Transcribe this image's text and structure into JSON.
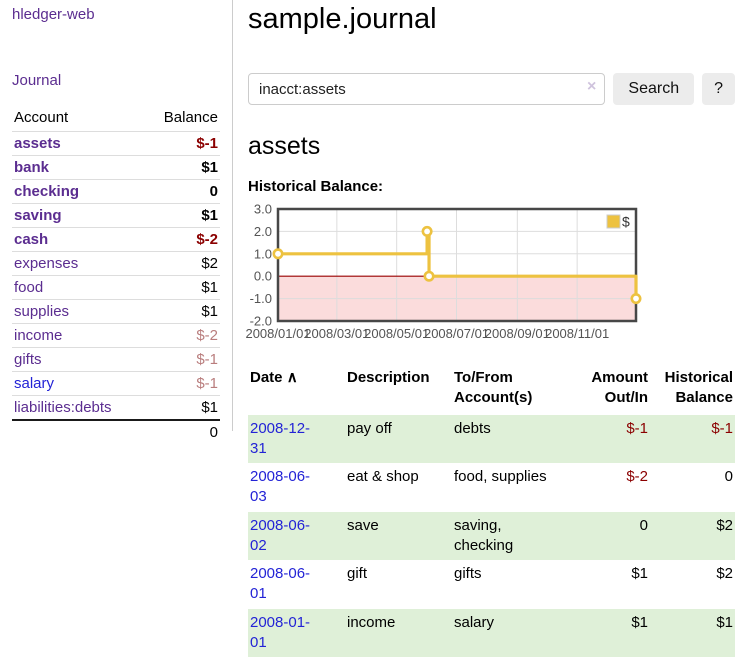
{
  "app": {
    "title": "hledger-web"
  },
  "colors": {
    "accent_purple": "#5b2d90",
    "link_blue": "#2323d6",
    "negative_strong": "#8b0000",
    "negative_muted": "#b97d7d",
    "row_shade_green": "#dff0d8",
    "chart_line": "#edc240",
    "negative_region": "#fbdcdc",
    "zero_line": "#990000"
  },
  "sidebar": {
    "journal_link": "Journal",
    "table": {
      "account_header": "Account",
      "balance_header": "Balance",
      "rows": [
        {
          "name": "assets",
          "depth": 1,
          "bold": true,
          "blue": false,
          "balance": "$-1",
          "bstyle": "negstrong"
        },
        {
          "name": "bank",
          "depth": 2,
          "bold": true,
          "blue": false,
          "balance": "$1",
          "bstyle": "b"
        },
        {
          "name": "checking",
          "depth": 3,
          "bold": true,
          "blue": false,
          "balance": "0",
          "bstyle": "b"
        },
        {
          "name": "saving",
          "depth": 3,
          "bold": true,
          "blue": false,
          "balance": "$1",
          "bstyle": "b"
        },
        {
          "name": "cash",
          "depth": 2,
          "bold": true,
          "blue": false,
          "balance": "$-2",
          "bstyle": "negstrong"
        },
        {
          "name": "expenses",
          "depth": 1,
          "bold": false,
          "blue": false,
          "balance": "$2",
          "bstyle": ""
        },
        {
          "name": "food",
          "depth": 2,
          "bold": false,
          "blue": false,
          "balance": "$1",
          "bstyle": ""
        },
        {
          "name": "supplies",
          "depth": 2,
          "bold": false,
          "blue": false,
          "balance": "$1",
          "bstyle": ""
        },
        {
          "name": "income",
          "depth": 1,
          "bold": false,
          "blue": false,
          "balance": "$-2",
          "bstyle": "negmuted"
        },
        {
          "name": "gifts",
          "depth": 2,
          "bold": false,
          "blue": false,
          "balance": "$-1",
          "bstyle": "negmuted"
        },
        {
          "name": "salary",
          "depth": 2,
          "bold": false,
          "blue": true,
          "balance": "$-1",
          "bstyle": "negmuted"
        },
        {
          "name": "liabilities:debts",
          "depth": 1,
          "bold": false,
          "blue": false,
          "balance": "$1",
          "bstyle": ""
        }
      ],
      "total": "0"
    }
  },
  "header": {
    "title": "sample.journal"
  },
  "search": {
    "value": "inacct:assets",
    "clear_icon": "×",
    "button": "Search",
    "help_button": "?"
  },
  "account_page": {
    "heading": "assets",
    "chart_label": "Historical Balance:"
  },
  "chart_data": {
    "type": "line",
    "steps": true,
    "title": "Historical Balance:",
    "series": [
      {
        "name": "$",
        "color": "#edc240",
        "points": [
          [
            "2008-01-01",
            1
          ],
          [
            "2008-06-01",
            2
          ],
          [
            "2008-06-03",
            0
          ],
          [
            "2008-12-31",
            -1
          ]
        ]
      }
    ],
    "x_range": [
      "2008-01-01",
      "2008-12-31"
    ],
    "ylim": [
      -2,
      3
    ],
    "y_ticks": [
      "-2.0",
      "-1.0",
      "0.0",
      "1.0",
      "2.0",
      "3.0"
    ],
    "x_ticks": [
      "2008/01/01",
      "2008/03/01",
      "2008/05/01",
      "2008/07/01",
      "2008/09/01",
      "2008/11/01"
    ],
    "grid": true,
    "legend_position": "top-right",
    "legend_label": "$",
    "negative_region_shaded": true
  },
  "register": {
    "columns": [
      {
        "label": "Date",
        "sort": "∧"
      },
      {
        "label": "Description"
      },
      {
        "label": "To/From",
        "label2": "Account(s)"
      },
      {
        "label": "Amount",
        "label2": "Out/In"
      },
      {
        "label": "Historical",
        "label2": "Balance"
      }
    ],
    "rows": [
      {
        "date": "2008-12-31",
        "description": "pay off",
        "accounts": "debts",
        "amount": "$-1",
        "balance": "$-1",
        "shaded": true
      },
      {
        "date": "2008-06-03",
        "description": "eat & shop",
        "accounts": "food, supplies",
        "amount": "$-2",
        "balance": "0",
        "shaded": false
      },
      {
        "date": "2008-06-02",
        "description": "save",
        "accounts": "saving, checking",
        "amount": "0",
        "balance": "$2",
        "shaded": true
      },
      {
        "date": "2008-06-01",
        "description": "gift",
        "accounts": "gifts",
        "amount": "$1",
        "balance": "$2",
        "shaded": false
      },
      {
        "date": "2008-01-01",
        "description": "income",
        "accounts": "salary",
        "amount": "$1",
        "balance": "$1",
        "shaded": true
      }
    ]
  }
}
